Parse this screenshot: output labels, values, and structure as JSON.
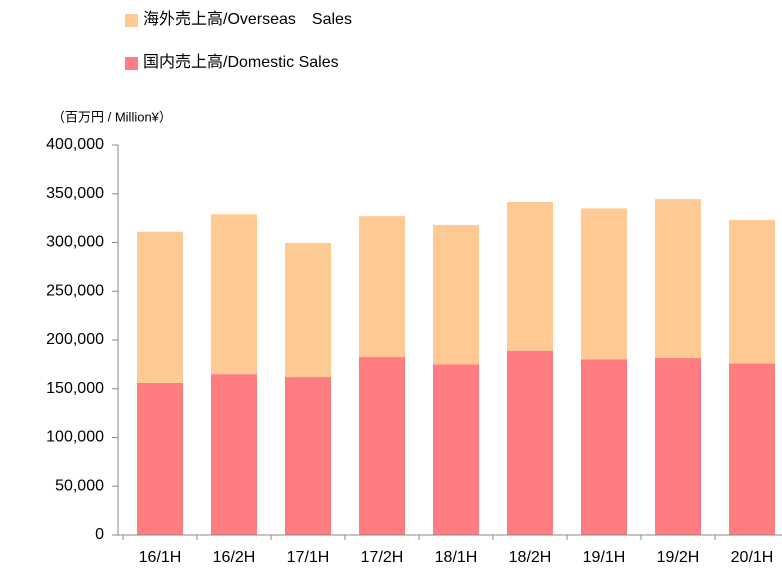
{
  "chart_data": {
    "type": "stacked_bar",
    "y_label": "（百万円 / Million¥）",
    "categories": [
      "16/1H",
      "16/2H",
      "17/1H",
      "17/2H",
      "18/1H",
      "18/2H",
      "19/1H",
      "19/2H",
      "20/1H"
    ],
    "series": [
      {
        "name": "国内売上高/Domestic Sales",
        "color": "#ff7c80",
        "values": [
          156000,
          165000,
          162000,
          182500,
          175000,
          189000,
          180000,
          181500,
          176000
        ]
      },
      {
        "name": "海外売上高/Overseas　Sales",
        "color": "#ffc993",
        "values": [
          155000,
          164000,
          137500,
          144500,
          143000,
          152500,
          155000,
          163000,
          147000
        ]
      }
    ],
    "ylim": [
      0,
      400000
    ],
    "yticks": [
      0,
      {
        "value": 50000,
        "label": "50,000"
      },
      {
        "value": 100000,
        "label": "100,000"
      },
      {
        "value": 150000,
        "label": "150,000"
      },
      {
        "value": 200000,
        "label": "200,000"
      },
      {
        "value": 250000,
        "label": "250,000"
      },
      {
        "value": 300000,
        "label": "300,000"
      },
      {
        "value": 350000,
        "label": "350,000"
      },
      {
        "value": 400000,
        "label": "400,000"
      }
    ],
    "grid": false
  }
}
